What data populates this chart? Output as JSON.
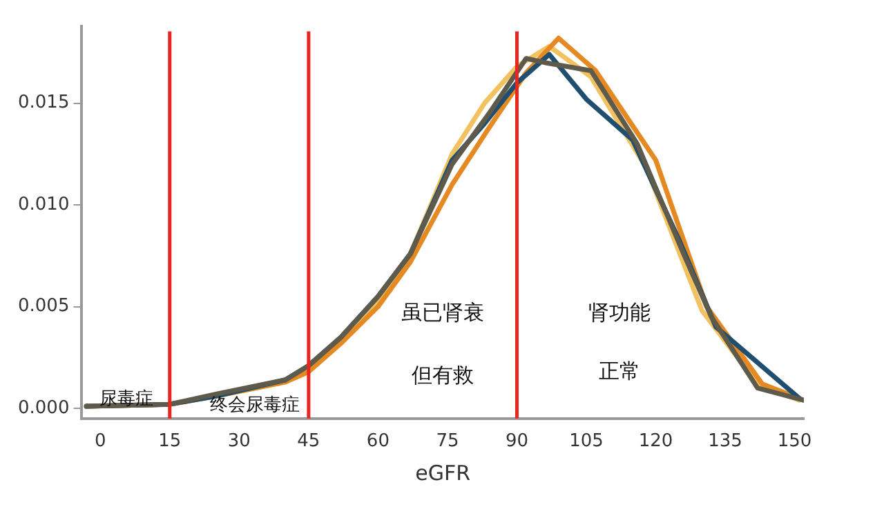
{
  "chart_data": {
    "type": "line",
    "xlabel": "eGFR",
    "xlim": [
      -4,
      152
    ],
    "xticks": [
      0,
      15,
      30,
      45,
      60,
      75,
      90,
      105,
      120,
      135,
      150
    ],
    "ylim": [
      -0.0005,
      0.0188
    ],
    "yticks": [
      {
        "value": 0,
        "label": "0.000"
      },
      {
        "value": 0.005,
        "label": "0.005"
      },
      {
        "value": 0.01,
        "label": "0.010"
      },
      {
        "value": 0.015,
        "label": "0.015"
      }
    ],
    "grid": false,
    "legend": false,
    "marker": "none",
    "line_style": "solid",
    "series": [
      {
        "color": "#f2c261",
        "x": [
          -3,
          15,
          25,
          40,
          45,
          52,
          60,
          67,
          76,
          83,
          90,
          97,
          106,
          118,
          130,
          142,
          151
        ],
        "values": [
          0.0001,
          0.0002,
          0.0006,
          0.0013,
          0.0018,
          0.0033,
          0.0052,
          0.0076,
          0.0125,
          0.015,
          0.0168,
          0.0178,
          0.0163,
          0.0118,
          0.0048,
          0.0012,
          0.0004
        ]
      },
      {
        "color": "#e58a22",
        "x": [
          -3,
          15,
          25,
          40,
          45,
          52,
          60,
          67,
          76,
          84,
          92,
          99,
          107,
          120,
          131,
          143,
          152
        ],
        "values": [
          0.0001,
          0.0002,
          0.0006,
          0.0013,
          0.0018,
          0.0032,
          0.005,
          0.0072,
          0.011,
          0.0138,
          0.0165,
          0.0182,
          0.0166,
          0.0122,
          0.005,
          0.0012,
          0.0004
        ]
      },
      {
        "color": "#1f4e6e",
        "x": [
          -3,
          15,
          25,
          40,
          45,
          52,
          60,
          67,
          76,
          83,
          90,
          97,
          105,
          115,
          125,
          133,
          151
        ],
        "values": [
          0.0001,
          0.0002,
          0.0006,
          0.0014,
          0.0021,
          0.0035,
          0.0055,
          0.0076,
          0.0122,
          0.014,
          0.016,
          0.0174,
          0.0152,
          0.0132,
          0.0083,
          0.004,
          0.0005
        ]
      },
      {
        "color": "#5e5a4c",
        "x": [
          -3,
          15,
          25,
          40,
          45,
          52,
          60,
          67,
          76,
          84,
          92,
          96,
          106,
          116,
          126,
          132,
          142,
          152
        ],
        "values": [
          0.0001,
          0.0002,
          0.0007,
          0.0014,
          0.0021,
          0.0035,
          0.0055,
          0.0076,
          0.012,
          0.0145,
          0.0172,
          0.017,
          0.0166,
          0.013,
          0.0076,
          0.0045,
          0.001,
          0.0004
        ]
      }
    ],
    "ref_lines": [
      {
        "axis": "x",
        "value": 15,
        "color": "#e8251f"
      },
      {
        "axis": "x",
        "value": 45,
        "color": "#e8251f"
      },
      {
        "axis": "x",
        "value": 90,
        "color": "#e8251f"
      }
    ],
    "annotations": [
      "尿毒症",
      "终会尿毒症",
      "虽已肾衰",
      "但有救",
      "肾功能",
      "正常"
    ]
  }
}
